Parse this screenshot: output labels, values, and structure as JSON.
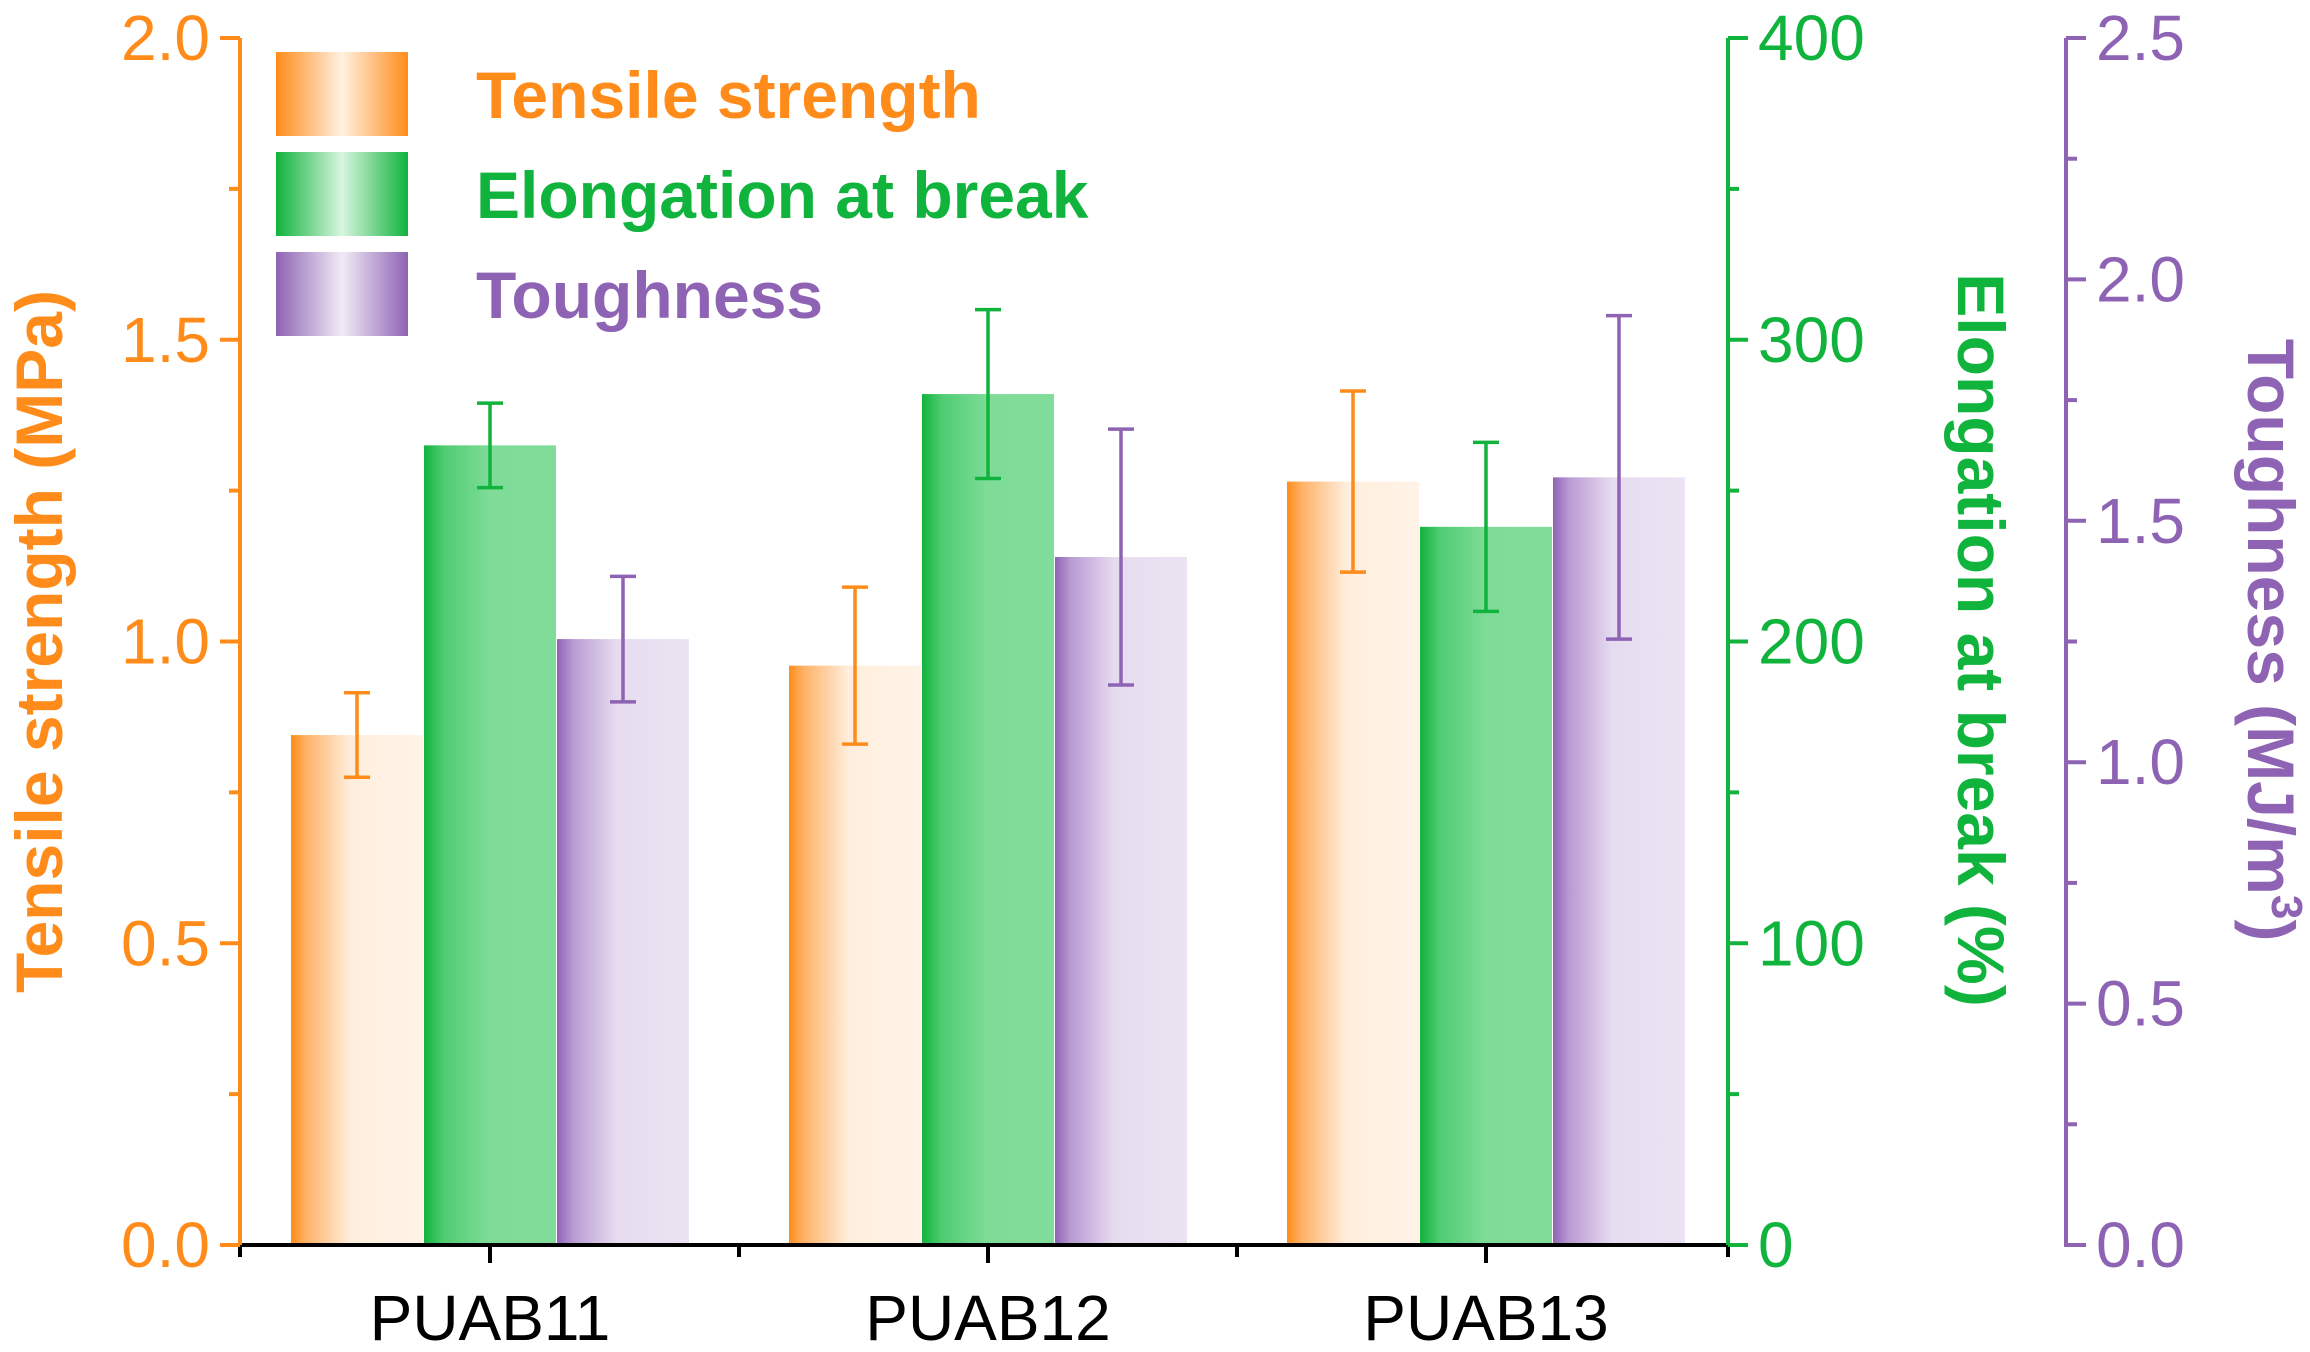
{
  "chart_data": {
    "type": "bar",
    "categories": [
      "PUAB11",
      "PUAB12",
      "PUAB13"
    ],
    "series": [
      {
        "name": "Tensile strength",
        "axis": "left",
        "color": "#ff8c1a",
        "values": [
          0.845,
          0.96,
          1.265
        ],
        "errors": [
          0.07,
          0.13,
          0.15
        ]
      },
      {
        "name": "Elongation at break",
        "axis": "right",
        "color": "#10b33c",
        "values": [
          265,
          282,
          238
        ],
        "errors": [
          14,
          28,
          28
        ]
      },
      {
        "name": "Toughness",
        "axis": "far-right",
        "color": "#8e63b4",
        "values": [
          1.255,
          1.425,
          1.59
        ],
        "errors": [
          0.13,
          0.265,
          0.335
        ]
      }
    ],
    "axes": {
      "left": {
        "label": "Tensile strength (MPa)",
        "ylim": [
          0,
          2.0
        ],
        "ticks": [
          "0.0",
          "0.5",
          "1.0",
          "1.5",
          "2.0"
        ],
        "color": "#ff8c1a"
      },
      "right": {
        "label": "Elongation at break (%)",
        "ylim": [
          0,
          400
        ],
        "ticks": [
          "0",
          "100",
          "200",
          "300",
          "400"
        ],
        "color": "#10b33c"
      },
      "far_right": {
        "label": "Toughness (MJ/m",
        "label_sup": "3",
        "label_close": ")",
        "ylim": [
          0,
          2.5
        ],
        "ticks": [
          "0.0",
          "0.5",
          "1.0",
          "1.5",
          "2.0",
          "2.5"
        ],
        "color": "#8e63b4"
      }
    },
    "legend": {
      "placement": "top-left",
      "entries": [
        "Tensile strength",
        "Elongation at break",
        "Toughness"
      ]
    },
    "grid": false
  }
}
